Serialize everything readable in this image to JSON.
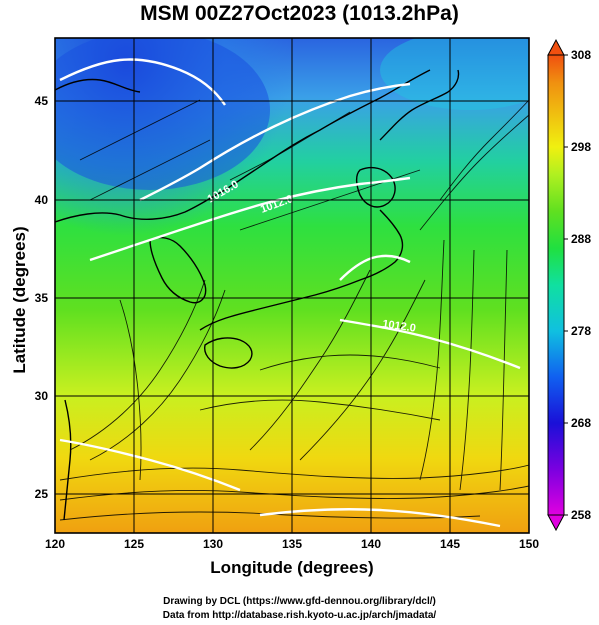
{
  "title": "MSM 00Z27Oct2023 (1013.2hPa)",
  "axes": {
    "xlabel": "Longitude (degrees)",
    "ylabel": "Latitude  (degrees)",
    "xticks": [
      "120",
      "125",
      "130",
      "135",
      "140",
      "145",
      "150"
    ],
    "yticks": [
      "25",
      "30",
      "35",
      "40",
      "45"
    ],
    "xrange": [
      120,
      150
    ],
    "yrange": [
      22.4,
      47.6
    ]
  },
  "colorbar": {
    "ticks": [
      "258",
      "268",
      "278",
      "288",
      "298",
      "308"
    ],
    "range": [
      258,
      308
    ],
    "colors": [
      "#e000e0",
      "#7a00e0",
      "#1a10d8",
      "#1060f0",
      "#10c0e0",
      "#10e0a0",
      "#20e040",
      "#60e020",
      "#b0f020",
      "#f0f010",
      "#f0c010",
      "#f09010",
      "#f05010"
    ]
  },
  "contours": {
    "labels": [
      "1016.0",
      "1012.0",
      "1012.0"
    ]
  },
  "credits": {
    "line1": "Drawing by DCL (https://www.gfd-dennou.org/library/dcl/)",
    "line2": "Data from http://database.rish.kyoto-u.ac.jp/arch/jmadata/"
  },
  "map_data": {
    "field": "temperature (K)",
    "overlay": "streamlines of wind, white isobars, black coastlines",
    "region": "East Asia / Japan"
  }
}
